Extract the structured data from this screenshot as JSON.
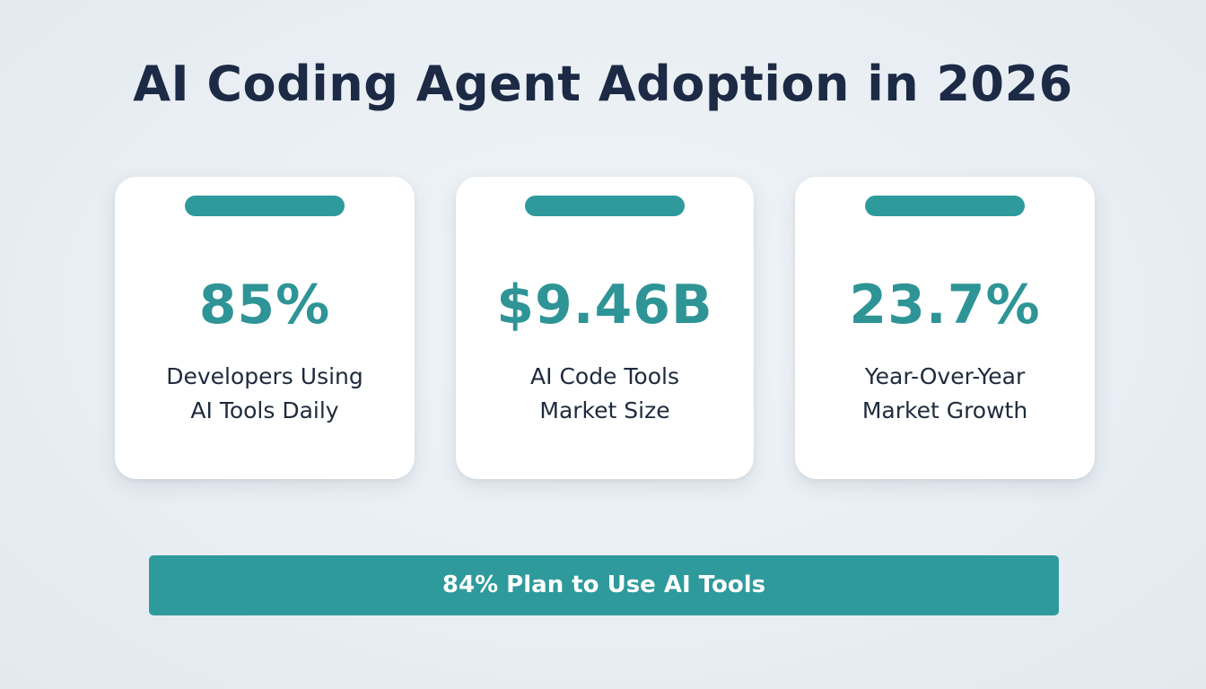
{
  "title": "AI Coding Agent Adoption in 2026",
  "colors": {
    "accent": "#2f9a9c",
    "value_text": "#2e9496",
    "title_text": "#1c2a45",
    "background": "#e6edf2"
  },
  "cards": [
    {
      "value": "85%",
      "label_line1": "Developers Using",
      "label_line2": "AI Tools Daily"
    },
    {
      "value": "$9.46B",
      "label_line1": "AI Code Tools",
      "label_line2": "Market Size"
    },
    {
      "value": "23.7%",
      "label_line1": "Year-Over-Year",
      "label_line2": "Market Growth"
    }
  ],
  "banner": {
    "text": "84% Plan to Use AI Tools"
  }
}
